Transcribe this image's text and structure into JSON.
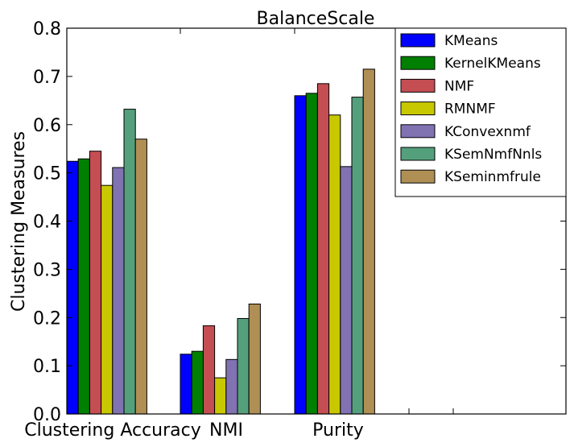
{
  "chart_data": {
    "type": "bar",
    "title": "BalanceScale",
    "xlabel": "",
    "ylabel": "Clustering Measures",
    "ylim": [
      0,
      0.8
    ],
    "yticks": [
      "0.0",
      "0.1",
      "0.2",
      "0.3",
      "0.4",
      "0.5",
      "0.6",
      "0.7",
      "0.8"
    ],
    "categories": [
      "Clustering Accuracy",
      "NMI",
      "Purity"
    ],
    "grid": false,
    "legend_position": "top-right",
    "series": [
      {
        "name": "KMeans",
        "color": "#0000ff",
        "values": [
          0.524,
          0.124,
          0.66
        ]
      },
      {
        "name": "KernelKMeans",
        "color": "#008000",
        "values": [
          0.529,
          0.13,
          0.665
        ]
      },
      {
        "name": "NMF",
        "color": "#c44e52",
        "values": [
          0.545,
          0.183,
          0.685
        ]
      },
      {
        "name": "RMNMF",
        "color": "#c8c800",
        "values": [
          0.474,
          0.075,
          0.62
        ]
      },
      {
        "name": "KConvexnmf",
        "color": "#8172b2",
        "values": [
          0.511,
          0.113,
          0.513
        ]
      },
      {
        "name": "KSemNmfNnls",
        "color": "#55a07c",
        "values": [
          0.632,
          0.198,
          0.657
        ]
      },
      {
        "name": "KSeminmfrule",
        "color": "#b08f55",
        "values": [
          0.57,
          0.228,
          0.715
        ]
      }
    ]
  }
}
